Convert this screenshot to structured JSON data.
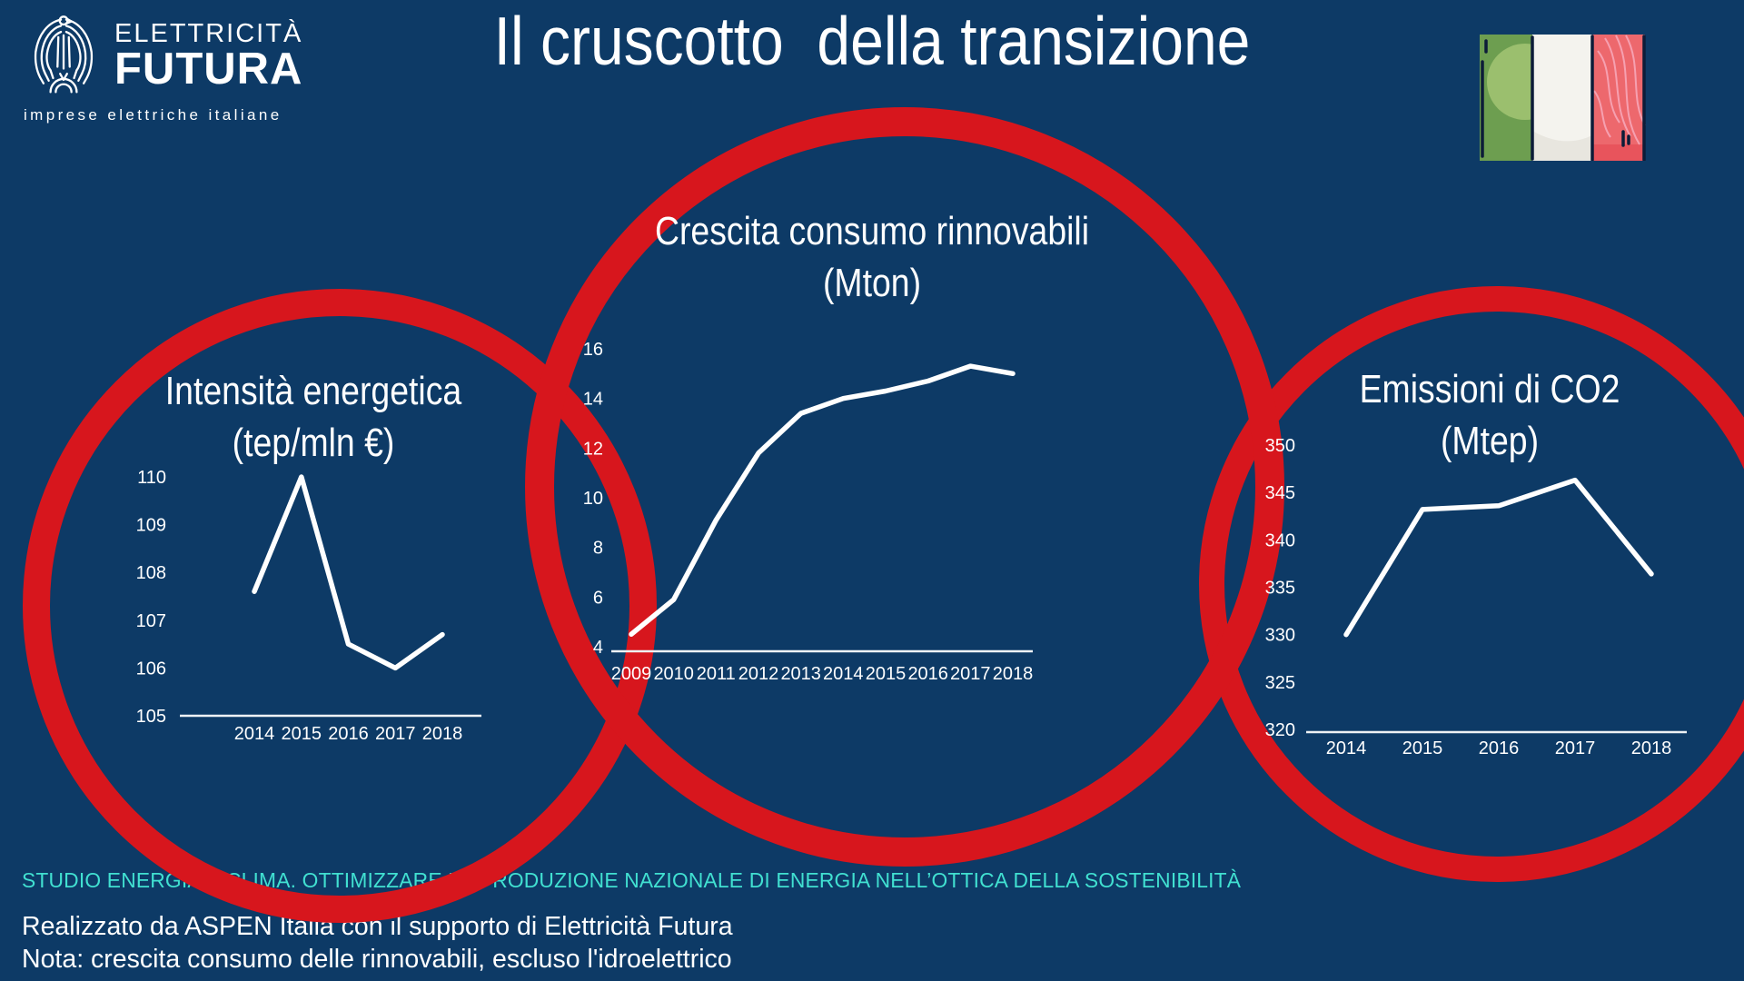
{
  "header": {
    "title": "Il cruscotto  della transizione",
    "logo": {
      "line1": "ELETTRICITÀ",
      "line2": "FUTURA",
      "tagline": "imprese elettriche italiane"
    }
  },
  "colors": {
    "background": "#0d3a66",
    "ring_red": "#d7161d",
    "chart_line": "#ffffff",
    "accent_teal": "#41e0d1",
    "flag_green": "#6d9e50",
    "flag_white": "#f4f3ee",
    "flag_red": "#ed686d"
  },
  "footer": {
    "studio_line": "STUDIO ENERGIA E CLIMA. OTTIMIZZARE LA PRODUZIONE NAZIONALE DI ENERGIA NELL’OTTICA DELLA SOSTENIBILITÀ",
    "credit_line": "Realizzato da ASPEN Italia con il supporto di Elettricità Futura",
    "note_line": "Nota: crescita consumo delle rinnovabili, escluso l'idroelettrico"
  },
  "chart_data": [
    {
      "type": "line",
      "title": "Intensità energetica",
      "subtitle": "(tep/mln €)",
      "categories": [
        "2014",
        "2015",
        "2016",
        "2017",
        "2018"
      ],
      "values": [
        107.6,
        110,
        106.5,
        106,
        106.7
      ],
      "ylim": [
        105,
        110
      ],
      "yticks": [
        110,
        109,
        108,
        107,
        106,
        105
      ],
      "grid": false,
      "legend": "none",
      "line_color": "#ffffff"
    },
    {
      "type": "line",
      "title": "Crescita consumo rinnovabili",
      "subtitle": "(Mton)",
      "categories": [
        "2009",
        "2010",
        "2011",
        "2012",
        "2013",
        "2014",
        "2015",
        "2016",
        "2017",
        "2018"
      ],
      "values": [
        4.5,
        5.9,
        9.1,
        11.8,
        13.4,
        14.0,
        14.3,
        14.7,
        15.3,
        15.0
      ],
      "ylim": [
        4,
        16
      ],
      "yticks": [
        16,
        14,
        12,
        10,
        8,
        6,
        4
      ],
      "grid": false,
      "legend": "none",
      "line_color": "#ffffff"
    },
    {
      "type": "line",
      "title": "Emissioni di CO2",
      "subtitle": "(Mtep)",
      "categories": [
        "2014",
        "2015",
        "2016",
        "2017",
        "2018"
      ],
      "values": [
        330,
        343.2,
        343.6,
        346.3,
        336.4
      ],
      "ylim": [
        320,
        350
      ],
      "yticks": [
        350,
        345,
        340,
        335,
        330,
        325,
        320
      ],
      "grid": false,
      "legend": "none",
      "line_color": "#ffffff"
    }
  ]
}
